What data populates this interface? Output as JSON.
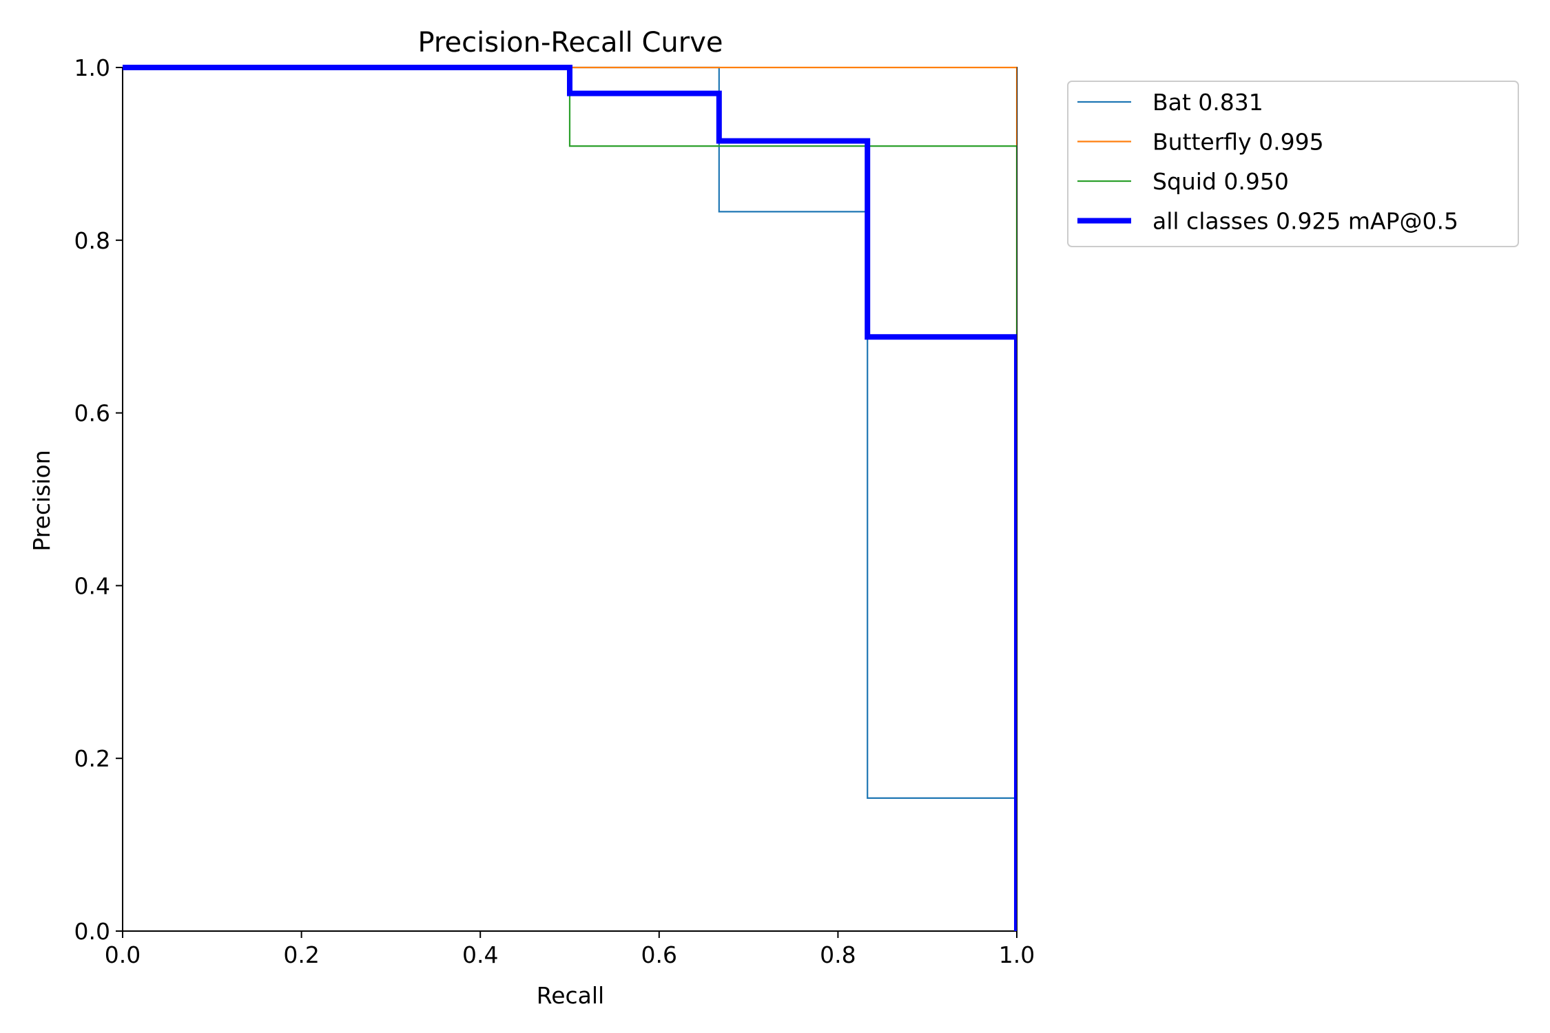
{
  "chart_data": {
    "type": "line",
    "title": "Precision-Recall Curve",
    "xlabel": "Recall",
    "ylabel": "Precision",
    "xlim": [
      0,
      1
    ],
    "ylim": [
      0,
      1
    ],
    "xticks": [
      "0.0",
      "0.2",
      "0.4",
      "0.6",
      "0.8",
      "1.0"
    ],
    "yticks": [
      "0.0",
      "0.2",
      "0.4",
      "0.6",
      "0.8",
      "1.0"
    ],
    "grid": false,
    "legend_position": "outside-top-right",
    "series": [
      {
        "name": "Bat 0.831",
        "color": "#1f77b4",
        "line_width": "thin",
        "points": [
          [
            0,
            1
          ],
          [
            0.667,
            1
          ],
          [
            0.667,
            0.833
          ],
          [
            0.833,
            0.833
          ],
          [
            0.833,
            0.154
          ],
          [
            1,
            0.154
          ],
          [
            1,
            0
          ]
        ]
      },
      {
        "name": "Butterfly 0.995",
        "color": "#ff7f0e",
        "line_width": "thin",
        "points": [
          [
            0,
            1
          ],
          [
            1,
            1
          ],
          [
            1,
            0
          ]
        ]
      },
      {
        "name": "Squid 0.950",
        "color": "#2ca02c",
        "line_width": "thin",
        "points": [
          [
            0,
            1
          ],
          [
            0.5,
            1
          ],
          [
            0.5,
            0.909
          ],
          [
            1,
            0.909
          ],
          [
            1,
            0
          ]
        ]
      },
      {
        "name": "all classes 0.925 mAP@0.5",
        "color": "#0000ff",
        "line_width": "thick",
        "points": [
          [
            0,
            1
          ],
          [
            0.5,
            1
          ],
          [
            0.5,
            0.97
          ],
          [
            0.667,
            0.97
          ],
          [
            0.667,
            0.915
          ],
          [
            0.833,
            0.915
          ],
          [
            0.833,
            0.688
          ],
          [
            1,
            0.688
          ],
          [
            1,
            0
          ]
        ]
      }
    ]
  }
}
